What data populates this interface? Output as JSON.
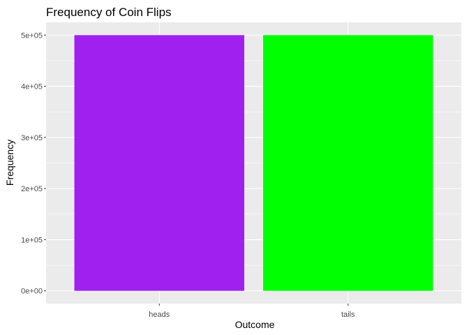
{
  "chart_data": {
    "type": "bar",
    "title": "Frequency of Coin Flips",
    "xlabel": "Outcome",
    "ylabel": "Frequency",
    "categories": [
      "heads",
      "tails"
    ],
    "values": [
      500000,
      500000
    ],
    "bar_colors": [
      "#A020F0",
      "#00FF00"
    ],
    "ylim": [
      0,
      500000
    ],
    "y_ticks": [
      0,
      100000,
      200000,
      300000,
      400000,
      500000
    ],
    "y_tick_labels": [
      "0e+00",
      "1e+05",
      "2e+05",
      "3e+05",
      "4e+05",
      "5e+05"
    ],
    "panel_background": "#EBEBEB",
    "grid": true,
    "legend": "none"
  }
}
